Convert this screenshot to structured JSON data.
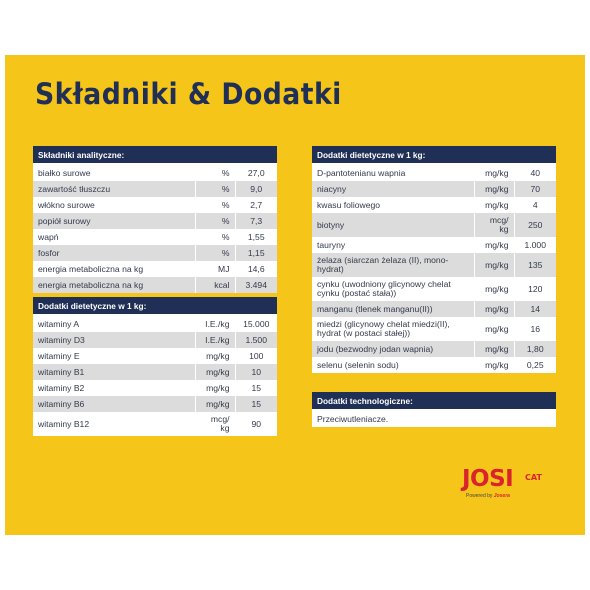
{
  "title": "Składniki & Dodatki",
  "analytical": {
    "header": "Składniki analityczne:",
    "rows": [
      {
        "name": "białko surowe",
        "unit": "%",
        "value": "27,0"
      },
      {
        "name": "zawartość tłuszczu",
        "unit": "%",
        "value": "9,0"
      },
      {
        "name": "włókno surowe",
        "unit": "%",
        "value": "2,7"
      },
      {
        "name": "popiół surowy",
        "unit": "%",
        "value": "7,3"
      },
      {
        "name": "wapń",
        "unit": "%",
        "value": "1,55"
      },
      {
        "name": "fosfor",
        "unit": "%",
        "value": "1,15"
      },
      {
        "name": "energia metaboliczna na kg",
        "unit": "MJ",
        "value": "14,6"
      },
      {
        "name": "energia metaboliczna na kg",
        "unit": "kcal",
        "value": "3.494"
      }
    ]
  },
  "dietary_left": {
    "header": "Dodatki dietetyczne w 1 kg:",
    "rows": [
      {
        "name": "witaminy A",
        "unit": "I.E./kg",
        "value": "15.000"
      },
      {
        "name": "witaminy D3",
        "unit": "I.E./kg",
        "value": "1.500"
      },
      {
        "name": "witaminy E",
        "unit": "mg/kg",
        "value": "100"
      },
      {
        "name": "witaminy B1",
        "unit": "mg/kg",
        "value": "10"
      },
      {
        "name": "witaminy B2",
        "unit": "mg/kg",
        "value": "15"
      },
      {
        "name": "witaminy B6",
        "unit": "mg/kg",
        "value": "15"
      },
      {
        "name": "witaminy B12",
        "unit": "mcg/\nkg",
        "value": "90"
      }
    ]
  },
  "dietary_right": {
    "header": "Dodatki dietetyczne w 1 kg:",
    "rows": [
      {
        "name": "D-pantotenianu wapnia",
        "unit": "mg/kg",
        "value": "40"
      },
      {
        "name": "niacyny",
        "unit": "mg/kg",
        "value": "70"
      },
      {
        "name": "kwasu foliowego",
        "unit": "mg/kg",
        "value": "4"
      },
      {
        "name": "biotyny",
        "unit": "mcg/\nkg",
        "value": "250"
      },
      {
        "name": "tauryny",
        "unit": "mg/kg",
        "value": "1.000"
      },
      {
        "name": "żelaza (siarczan żelaza (II), mono-\nhydrat)",
        "unit": "mg/kg",
        "value": "135"
      },
      {
        "name": "cynku (uwodniony glicynowy chelat\ncynku (postać stała))",
        "unit": "mg/kg",
        "value": "120"
      },
      {
        "name": "manganu (tlenek manganu(II))",
        "unit": "mg/kg",
        "value": "14"
      },
      {
        "name": "miedzi (glicynowy chelat miedzi(II),\nhydrat (w postaci stałej))",
        "unit": "mg/kg",
        "value": "16"
      },
      {
        "name": "jodu (bezwodny jodan wapnia)",
        "unit": "mg/kg",
        "value": "1,80"
      },
      {
        "name": "selenu (selenin sodu)",
        "unit": "mg/kg",
        "value": "0,25"
      }
    ]
  },
  "technological": {
    "header": "Dodatki technologiczne:",
    "text": "Przeciwutleniacze."
  },
  "logo": {
    "brand": "JOSI",
    "sub": "CAT",
    "byline_prefix": "Powered by",
    "byline_brand": "Josera"
  },
  "colors": {
    "background": "#f6c51a",
    "header": "#1f2f56",
    "row_alt": "#dcdcdc",
    "logo": "#d9232d"
  }
}
